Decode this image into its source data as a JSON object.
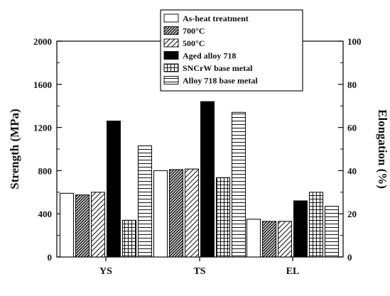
{
  "chart_data": {
    "type": "bar",
    "categories": [
      "YS",
      "TS",
      "EL"
    ],
    "ylabel": "Strength (MPa)",
    "y2label": "Elongation (%)",
    "ylim": [
      0,
      2000
    ],
    "y2lim": [
      0,
      100
    ],
    "yticks": [
      "0",
      "400",
      "800",
      "1200",
      "1600",
      "2000"
    ],
    "y2ticks": [
      "0",
      "20",
      "40",
      "60",
      "80",
      "100"
    ],
    "legend_position": "top-right",
    "grid": false,
    "series": [
      {
        "name": "As-heat treatment",
        "pattern": "plain",
        "values": [
          590,
          800,
          17.5
        ],
        "axes": [
          "left",
          "left",
          "right"
        ]
      },
      {
        "name": "700°C",
        "pattern": "dense-diagonal",
        "values": [
          575,
          810,
          16.5
        ],
        "axes": [
          "left",
          "left",
          "right"
        ]
      },
      {
        "name": "500°C",
        "pattern": "diagonal",
        "values": [
          600,
          815,
          16.5
        ],
        "axes": [
          "left",
          "left",
          "right"
        ]
      },
      {
        "name": "Aged alloy 718",
        "pattern": "solid",
        "values": [
          1260,
          1440,
          26
        ],
        "axes": [
          "left",
          "left",
          "right"
        ]
      },
      {
        "name": "SNCrW base metal",
        "pattern": "grid",
        "values": [
          340,
          735,
          30
        ],
        "axes": [
          "left",
          "left",
          "right"
        ]
      },
      {
        "name": "Alloy 718 base metal",
        "pattern": "horizontal",
        "values": [
          1030,
          1340,
          23.5
        ],
        "axes": [
          "left",
          "left",
          "right"
        ]
      }
    ]
  }
}
